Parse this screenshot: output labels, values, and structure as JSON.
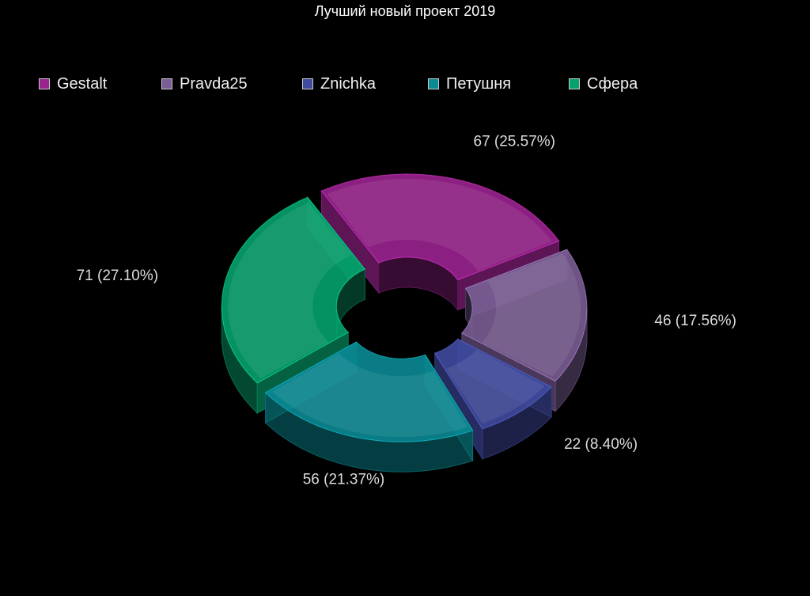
{
  "chart_data": {
    "type": "pie",
    "variant": "3d-donut",
    "title": "Лучший новый проект 2019",
    "legend_position": "top-left",
    "slices": [
      {
        "name": "Gestalt",
        "value": 67,
        "label": "67 (25.57%)",
        "color": "#9b2390"
      },
      {
        "name": "Pravda25",
        "value": 46,
        "label": "46 (17.56%)",
        "color": "#7a5d94"
      },
      {
        "name": "Znichka",
        "value": 22,
        "label": "22 (8.40%)",
        "color": "#404a9e"
      },
      {
        "name": "Петушня",
        "value": 56,
        "label": "56 (21.37%)",
        "color": "#0a8a93"
      },
      {
        "name": "Сфера",
        "value": 71,
        "label": "71 (27.10%)",
        "color": "#06a26e"
      }
    ]
  }
}
